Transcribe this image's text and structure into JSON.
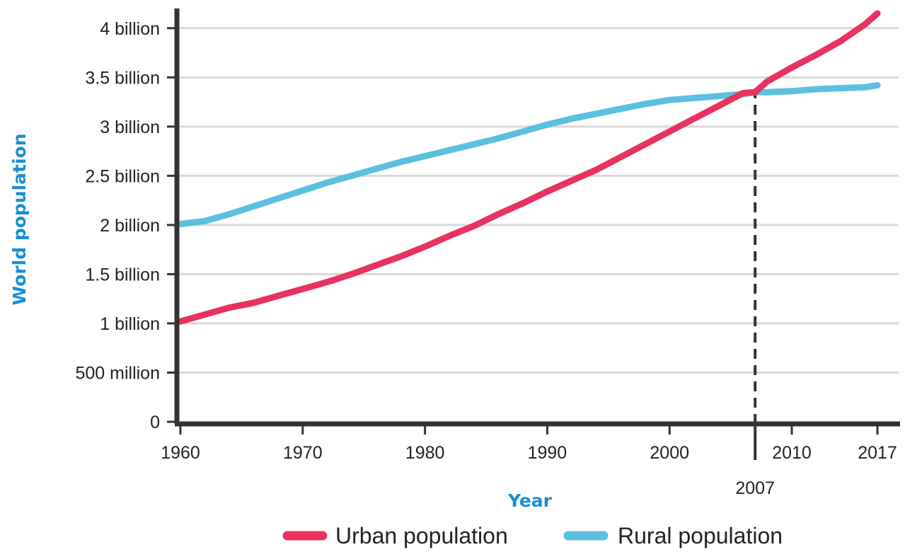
{
  "chart_data": {
    "type": "line",
    "title": "",
    "xlabel": "Year",
    "ylabel": "World population",
    "xlim": [
      1960,
      2017
    ],
    "ylim": [
      0,
      4200000000
    ],
    "x_ticks": [
      {
        "value": 1960,
        "label": "1960"
      },
      {
        "value": 1970,
        "label": "1970"
      },
      {
        "value": 1980,
        "label": "1980"
      },
      {
        "value": 1990,
        "label": "1990"
      },
      {
        "value": 2000,
        "label": "2000"
      },
      {
        "value": 2010,
        "label": "2010"
      },
      {
        "value": 2017,
        "label": "2017"
      }
    ],
    "y_ticks": [
      {
        "value": 0,
        "label": "0"
      },
      {
        "value": 500000000,
        "label": "500 million"
      },
      {
        "value": 1000000000,
        "label": "1 billion"
      },
      {
        "value": 1500000000,
        "label": "1.5 billion"
      },
      {
        "value": 2000000000,
        "label": "2 billion"
      },
      {
        "value": 2500000000,
        "label": "2.5 billion"
      },
      {
        "value": 3000000000,
        "label": "3 billion"
      },
      {
        "value": 3500000000,
        "label": "3.5 billion"
      },
      {
        "value": 4000000000,
        "label": "4 billion"
      }
    ],
    "grid": "horizontal",
    "legend_position": "bottom",
    "annotation": {
      "x": 2007,
      "label": "2007",
      "style": "dashed vertical line"
    },
    "series": [
      {
        "name": "Urban population",
        "color": "#e8325f",
        "points": [
          [
            1960,
            1020000000
          ],
          [
            1962,
            1090000000
          ],
          [
            1964,
            1160000000
          ],
          [
            1966,
            1210000000
          ],
          [
            1968,
            1280000000
          ],
          [
            1970,
            1350000000
          ],
          [
            1972,
            1420000000
          ],
          [
            1974,
            1500000000
          ],
          [
            1976,
            1590000000
          ],
          [
            1978,
            1680000000
          ],
          [
            1980,
            1780000000
          ],
          [
            1982,
            1890000000
          ],
          [
            1984,
            1990000000
          ],
          [
            1986,
            2110000000
          ],
          [
            1988,
            2220000000
          ],
          [
            1990,
            2340000000
          ],
          [
            1992,
            2450000000
          ],
          [
            1994,
            2560000000
          ],
          [
            1996,
            2690000000
          ],
          [
            1998,
            2820000000
          ],
          [
            2000,
            2950000000
          ],
          [
            2002,
            3080000000
          ],
          [
            2004,
            3210000000
          ],
          [
            2006,
            3340000000
          ],
          [
            2007,
            3350000000
          ],
          [
            2008,
            3460000000
          ],
          [
            2010,
            3600000000
          ],
          [
            2012,
            3730000000
          ],
          [
            2014,
            3870000000
          ],
          [
            2016,
            4040000000
          ],
          [
            2017,
            4150000000
          ]
        ]
      },
      {
        "name": "Rural population",
        "color": "#5bc0e0",
        "points": [
          [
            1960,
            2010000000
          ],
          [
            1962,
            2040000000
          ],
          [
            1964,
            2110000000
          ],
          [
            1966,
            2190000000
          ],
          [
            1968,
            2270000000
          ],
          [
            1970,
            2350000000
          ],
          [
            1972,
            2430000000
          ],
          [
            1974,
            2500000000
          ],
          [
            1976,
            2570000000
          ],
          [
            1978,
            2640000000
          ],
          [
            1980,
            2700000000
          ],
          [
            1982,
            2760000000
          ],
          [
            1984,
            2820000000
          ],
          [
            1986,
            2880000000
          ],
          [
            1988,
            2950000000
          ],
          [
            1990,
            3020000000
          ],
          [
            1992,
            3080000000
          ],
          [
            1994,
            3130000000
          ],
          [
            1996,
            3180000000
          ],
          [
            1998,
            3230000000
          ],
          [
            2000,
            3270000000
          ],
          [
            2002,
            3290000000
          ],
          [
            2004,
            3310000000
          ],
          [
            2006,
            3330000000
          ],
          [
            2007,
            3350000000
          ],
          [
            2008,
            3350000000
          ],
          [
            2010,
            3360000000
          ],
          [
            2012,
            3380000000
          ],
          [
            2014,
            3390000000
          ],
          [
            2016,
            3400000000
          ],
          [
            2017,
            3420000000
          ]
        ]
      }
    ]
  }
}
